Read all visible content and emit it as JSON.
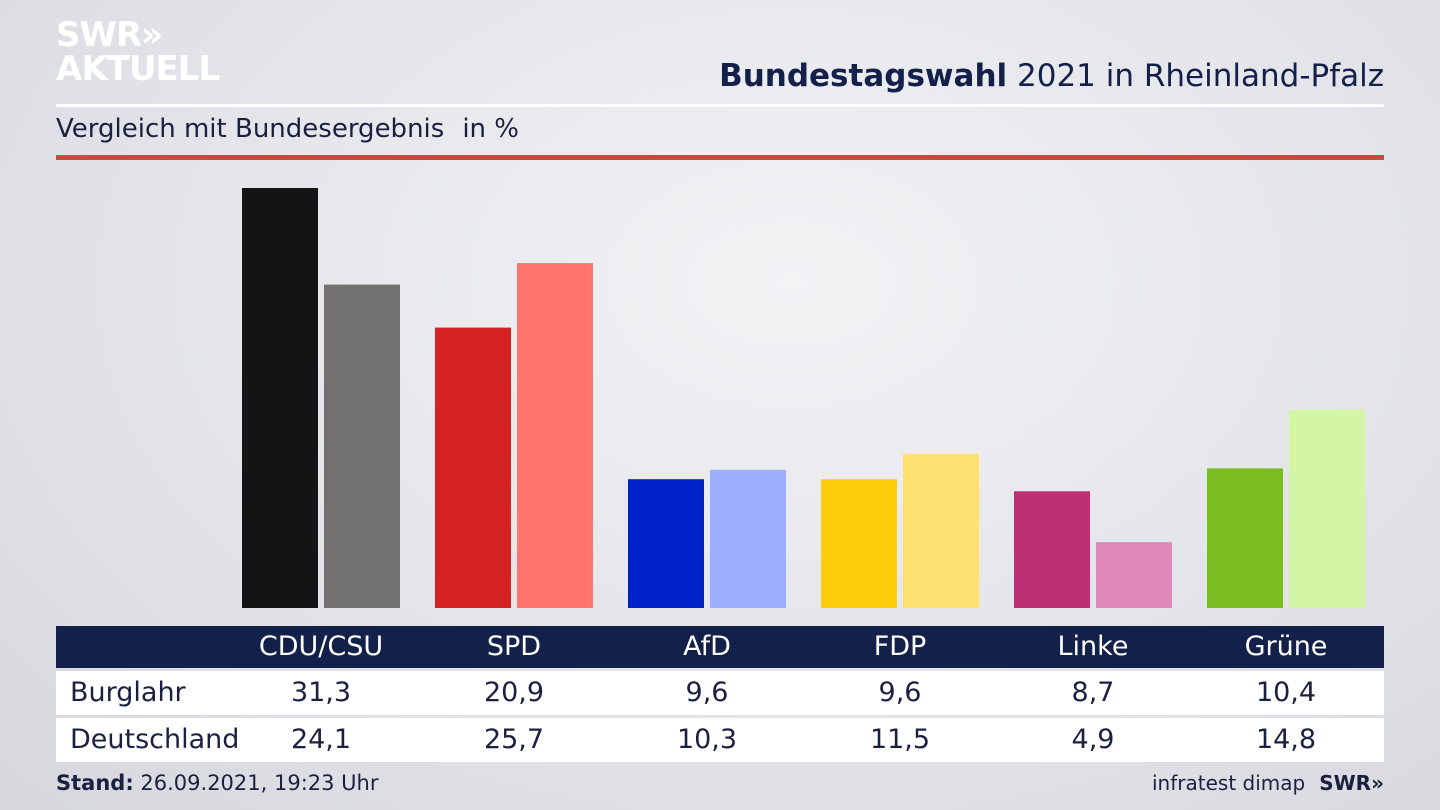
{
  "header": {
    "logo_line1": "SWR»",
    "logo_line2": "AKTUELL",
    "title_bold": "Bundestagswahl",
    "title_rest": " 2021 in Rheinland-Pfalz",
    "subtitle": "Vergleich mit Bundesergebnis",
    "unit": "in %"
  },
  "chart_data": {
    "type": "bar",
    "categories": [
      "CDU/CSU",
      "SPD",
      "AfD",
      "FDP",
      "Linke",
      "Grüne"
    ],
    "series": [
      {
        "name": "Burglahr",
        "values": [
          31.3,
          20.9,
          9.6,
          9.6,
          8.7,
          10.4
        ]
      },
      {
        "name": "Deutschland",
        "values": [
          24.1,
          25.7,
          10.3,
          11.5,
          4.9,
          14.8
        ]
      }
    ],
    "value_labels": {
      "Burglahr": [
        "31,3",
        "20,9",
        "9,6",
        "9,6",
        "8,7",
        "10,4"
      ],
      "Deutschland": [
        "24,1",
        "25,7",
        "10,3",
        "11,5",
        "4,9",
        "14,8"
      ]
    },
    "colors": {
      "Burglahr": [
        "#141414",
        "#d42121",
        "#0021c8",
        "#ffcc0a",
        "#bd3075",
        "#7abd20"
      ],
      "Deutschland": [
        "#737170",
        "#ff756e",
        "#9eaeff",
        "#fce070",
        "#e089b8",
        "#d3f5a5"
      ]
    },
    "ylim": [
      0,
      31.3
    ],
    "grid": false
  },
  "footer": {
    "stand_label": "Stand:",
    "stand_value": " 26.09.2021, 19:23 Uhr",
    "source": "infratest dimap",
    "brand": "SWR»"
  }
}
